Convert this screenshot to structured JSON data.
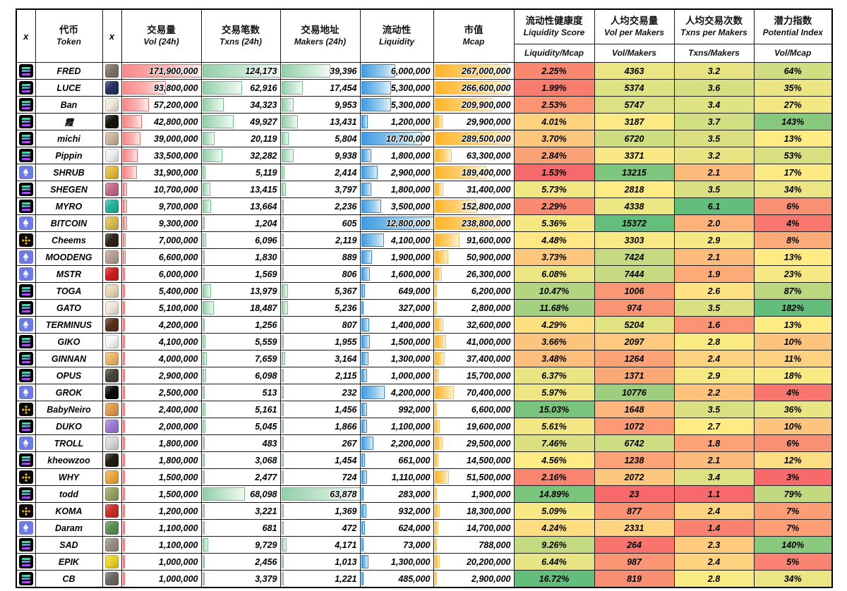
{
  "header": {
    "x1": "x",
    "x2": "x",
    "token": {
      "zh": "代币",
      "en": "Token"
    },
    "vol": {
      "zh": "交易量",
      "en": "Vol (24h)"
    },
    "txns": {
      "zh": "交易笔数",
      "en": "Txns (24h)"
    },
    "makers": {
      "zh": "交易地址",
      "en": "Makers (24h)"
    },
    "liquidity": {
      "zh": "流动性",
      "en": "Liquidity"
    },
    "mcap": {
      "zh": "市值",
      "en": "Mcap"
    },
    "liq_score": {
      "zh": "流动性健康度",
      "en": "Liquidity Score",
      "sub": "Liquidity/Mcap"
    },
    "vol_per_makers": {
      "zh": "人均交易量",
      "en": "Vol per Makers",
      "sub": "Vol/Makers"
    },
    "txns_per_makers": {
      "zh": "人均交易次数",
      "en": "Txns per Makers",
      "sub": "Txns/Makers"
    },
    "potential": {
      "zh": "潜力指数",
      "en": "Potential Index",
      "sub": "Vol/Mcap"
    }
  },
  "colors": {
    "heat_low": "#F8696B",
    "heat_mid": "#FFEB84",
    "heat_high": "#63BE7B",
    "bar_vol": "#F98B8B",
    "bar_txns": "#93CFA8",
    "bar_liquidity": "#419CE1",
    "bar_mcap": "#FFB429",
    "chain_solana_gradient": [
      "#00F0A0",
      "#9945FF"
    ],
    "chain_ethereum_bg": "#6E7BE2",
    "chain_bnb_gold": "#F3BA2F"
  },
  "chart_data": {
    "type": "table",
    "columns": [
      "chain",
      "token",
      "icon",
      "vol_24h",
      "txns_24h",
      "makers_24h",
      "liquidity",
      "mcap",
      "liquidity_mcap_pct",
      "vol_per_makers",
      "txns_per_makers",
      "vol_mcap_pct"
    ],
    "heat_scale": {
      "low": "#F8696B",
      "mid": "#FFEB84",
      "high": "#63BE7B",
      "midpoint": "median"
    },
    "rows": [
      {
        "chain": "solana",
        "token": "FRED",
        "icon_color": "#7d7468",
        "vol": 171900000,
        "txns": 124173,
        "makers": 39396,
        "liquidity": 6000000,
        "mcap": 267000000,
        "liq_mcap_pct": 2.25,
        "vol_per_makers": 4363,
        "txns_per_makers": 3.2,
        "vol_mcap_pct": 64
      },
      {
        "chain": "solana",
        "token": "LUCE",
        "icon_color": "#24335f",
        "vol": 93800000,
        "txns": 62916,
        "makers": 17454,
        "liquidity": 5300000,
        "mcap": 266600000,
        "liq_mcap_pct": 1.99,
        "vol_per_makers": 5374,
        "txns_per_makers": 3.6,
        "vol_mcap_pct": 35
      },
      {
        "chain": "solana",
        "token": "Ban",
        "icon_color": "#f0ead8",
        "vol": 57200000,
        "txns": 34323,
        "makers": 9953,
        "liquidity": 5300000,
        "mcap": 209900000,
        "liq_mcap_pct": 2.53,
        "vol_per_makers": 5747,
        "txns_per_makers": 3.4,
        "vol_mcap_pct": 27
      },
      {
        "chain": "solana",
        "token": "霞",
        "icon_color": "#15130a",
        "vol": 42800000,
        "txns": 49927,
        "makers": 13431,
        "liquidity": 1200000,
        "mcap": 29900000,
        "liq_mcap_pct": 4.01,
        "vol_per_makers": 3187,
        "txns_per_makers": 3.7,
        "vol_mcap_pct": 143
      },
      {
        "chain": "solana",
        "token": "michi",
        "icon_color": "#c9b49b",
        "vol": 39000000,
        "txns": 20119,
        "makers": 5804,
        "liquidity": 10700000,
        "mcap": 289500000,
        "liq_mcap_pct": 3.7,
        "vol_per_makers": 6720,
        "txns_per_makers": 3.5,
        "vol_mcap_pct": 13
      },
      {
        "chain": "solana",
        "token": "Pippin",
        "icon_color": "#eef0f2",
        "vol": 33500000,
        "txns": 32282,
        "makers": 9938,
        "liquidity": 1800000,
        "mcap": 63300000,
        "liq_mcap_pct": 2.84,
        "vol_per_makers": 3371,
        "txns_per_makers": 3.2,
        "vol_mcap_pct": 53
      },
      {
        "chain": "ethereum",
        "token": "SHRUB",
        "icon_color": "#e0b93f",
        "vol": 31900000,
        "txns": 5119,
        "makers": 2414,
        "liquidity": 2900000,
        "mcap": 189400000,
        "liq_mcap_pct": 1.53,
        "vol_per_makers": 13215,
        "txns_per_makers": 2.1,
        "vol_mcap_pct": 17
      },
      {
        "chain": "solana",
        "token": "SHEGEN",
        "icon_color": "#c06a8a",
        "vol": 10700000,
        "txns": 13415,
        "makers": 3797,
        "liquidity": 1800000,
        "mcap": 31400000,
        "liq_mcap_pct": 5.73,
        "vol_per_makers": 2818,
        "txns_per_makers": 3.5,
        "vol_mcap_pct": 34
      },
      {
        "chain": "solana",
        "token": "MYRO",
        "icon_color": "#24b39a",
        "vol": 9700000,
        "txns": 13664,
        "makers": 2236,
        "liquidity": 3500000,
        "mcap": 152800000,
        "liq_mcap_pct": 2.29,
        "vol_per_makers": 4338,
        "txns_per_makers": 6.1,
        "vol_mcap_pct": 6
      },
      {
        "chain": "ethereum",
        "token": "BITCOIN",
        "icon_color": "#d8bc52",
        "vol": 9300000,
        "txns": 1204,
        "makers": 605,
        "liquidity": 12800000,
        "mcap": 238800000,
        "liq_mcap_pct": 5.36,
        "vol_per_makers": 15372,
        "txns_per_makers": 2.0,
        "vol_mcap_pct": 4
      },
      {
        "chain": "bnb",
        "token": "Cheems",
        "icon_color": "#2e2418",
        "vol": 7000000,
        "txns": 6096,
        "makers": 2119,
        "liquidity": 4100000,
        "mcap": 91600000,
        "liq_mcap_pct": 4.48,
        "vol_per_makers": 3303,
        "txns_per_makers": 2.9,
        "vol_mcap_pct": 8
      },
      {
        "chain": "ethereum",
        "token": "MOODENG",
        "icon_color": "#b59f92",
        "vol": 6600000,
        "txns": 1830,
        "makers": 889,
        "liquidity": 1900000,
        "mcap": 50900000,
        "liq_mcap_pct": 3.73,
        "vol_per_makers": 7424,
        "txns_per_makers": 2.1,
        "vol_mcap_pct": 13
      },
      {
        "chain": "ethereum",
        "token": "MSTR",
        "icon_color": "#cf1f1f",
        "vol": 6000000,
        "txns": 1569,
        "makers": 806,
        "liquidity": 1600000,
        "mcap": 26300000,
        "liq_mcap_pct": 6.08,
        "vol_per_makers": 7444,
        "txns_per_makers": 1.9,
        "vol_mcap_pct": 23
      },
      {
        "chain": "solana",
        "token": "TOGA",
        "icon_color": "#e5d7b5",
        "vol": 5400000,
        "txns": 13979,
        "makers": 5367,
        "liquidity": 649000,
        "mcap": 6200000,
        "liq_mcap_pct": 10.47,
        "vol_per_makers": 1006,
        "txns_per_makers": 2.6,
        "vol_mcap_pct": 87
      },
      {
        "chain": "solana",
        "token": "GATO",
        "icon_color": "#efe8da",
        "vol": 5100000,
        "txns": 18487,
        "makers": 5236,
        "liquidity": 327000,
        "mcap": 2800000,
        "liq_mcap_pct": 11.68,
        "vol_per_makers": 974,
        "txns_per_makers": 3.5,
        "vol_mcap_pct": 182
      },
      {
        "chain": "ethereum",
        "token": "TERMINUS",
        "icon_color": "#59301c",
        "vol": 4200000,
        "txns": 1256,
        "makers": 807,
        "liquidity": 1400000,
        "mcap": 32600000,
        "liq_mcap_pct": 4.29,
        "vol_per_makers": 5204,
        "txns_per_makers": 1.6,
        "vol_mcap_pct": 13
      },
      {
        "chain": "solana",
        "token": "GIKO",
        "icon_color": "#f7f7f7",
        "vol": 4100000,
        "txns": 5559,
        "makers": 1955,
        "liquidity": 1500000,
        "mcap": 41000000,
        "liq_mcap_pct": 3.66,
        "vol_per_makers": 2097,
        "txns_per_makers": 2.8,
        "vol_mcap_pct": 10
      },
      {
        "chain": "solana",
        "token": "GINNAN",
        "icon_color": "#e9b66a",
        "vol": 4000000,
        "txns": 7659,
        "makers": 3164,
        "liquidity": 1300000,
        "mcap": 37400000,
        "liq_mcap_pct": 3.48,
        "vol_per_makers": 1264,
        "txns_per_makers": 2.4,
        "vol_mcap_pct": 11
      },
      {
        "chain": "solana",
        "token": "OPUS",
        "icon_color": "#4a443c",
        "vol": 2900000,
        "txns": 6098,
        "makers": 2115,
        "liquidity": 1000000,
        "mcap": 15700000,
        "liq_mcap_pct": 6.37,
        "vol_per_makers": 1371,
        "txns_per_makers": 2.9,
        "vol_mcap_pct": 18
      },
      {
        "chain": "ethereum",
        "token": "GROK",
        "icon_color": "#0a0a0a",
        "vol": 2500000,
        "txns": 513,
        "makers": 232,
        "liquidity": 4200000,
        "mcap": 70400000,
        "liq_mcap_pct": 5.97,
        "vol_per_makers": 10776,
        "txns_per_makers": 2.2,
        "vol_mcap_pct": 4
      },
      {
        "chain": "bnb",
        "token": "BabyNeiro",
        "icon_color": "#e09a4e",
        "vol": 2400000,
        "txns": 5161,
        "makers": 1456,
        "liquidity": 992000,
        "mcap": 6600000,
        "liq_mcap_pct": 15.03,
        "vol_per_makers": 1648,
        "txns_per_makers": 3.5,
        "vol_mcap_pct": 36
      },
      {
        "chain": "solana",
        "token": "DUKO",
        "icon_color": "#9d7ad0",
        "vol": 2000000,
        "txns": 5045,
        "makers": 1866,
        "liquidity": 1100000,
        "mcap": 19600000,
        "liq_mcap_pct": 5.61,
        "vol_per_makers": 1072,
        "txns_per_makers": 2.7,
        "vol_mcap_pct": 10
      },
      {
        "chain": "ethereum",
        "token": "TROLL",
        "icon_color": "#d9d9d9",
        "vol": 1800000,
        "txns": 483,
        "makers": 267,
        "liquidity": 2200000,
        "mcap": 29500000,
        "liq_mcap_pct": 7.46,
        "vol_per_makers": 6742,
        "txns_per_makers": 1.8,
        "vol_mcap_pct": 6
      },
      {
        "chain": "solana",
        "token": "kheowzoo",
        "icon_color": "#211c10",
        "vol": 1800000,
        "txns": 3068,
        "makers": 1454,
        "liquidity": 661000,
        "mcap": 14500000,
        "liq_mcap_pct": 4.56,
        "vol_per_makers": 1238,
        "txns_per_makers": 2.1,
        "vol_mcap_pct": 12
      },
      {
        "chain": "bnb",
        "token": "WHY",
        "icon_color": "#e8a93c",
        "vol": 1500000,
        "txns": 2477,
        "makers": 724,
        "liquidity": 1110000,
        "mcap": 51500000,
        "liq_mcap_pct": 2.16,
        "vol_per_makers": 2072,
        "txns_per_makers": 3.4,
        "vol_mcap_pct": 3
      },
      {
        "chain": "solana",
        "token": "todd",
        "icon_color": "#97a061",
        "vol": 1500000,
        "txns": 68098,
        "makers": 63878,
        "liquidity": 283000,
        "mcap": 1900000,
        "liq_mcap_pct": 14.89,
        "vol_per_makers": 23,
        "txns_per_makers": 1.1,
        "vol_mcap_pct": 79
      },
      {
        "chain": "bnb",
        "token": "KOMA",
        "icon_color": "#c92f28",
        "vol": 1200000,
        "txns": 3221,
        "makers": 1369,
        "liquidity": 932000,
        "mcap": 18300000,
        "liq_mcap_pct": 5.09,
        "vol_per_makers": 877,
        "txns_per_makers": 2.4,
        "vol_mcap_pct": 7
      },
      {
        "chain": "ethereum",
        "token": "Daram",
        "icon_color": "#5d8f52",
        "vol": 1100000,
        "txns": 681,
        "makers": 472,
        "liquidity": 624000,
        "mcap": 14700000,
        "liq_mcap_pct": 4.24,
        "vol_per_makers": 2331,
        "txns_per_makers": 1.4,
        "vol_mcap_pct": 7
      },
      {
        "chain": "solana",
        "token": "SAD",
        "icon_color": "#978f83",
        "vol": 1100000,
        "txns": 9729,
        "makers": 4171,
        "liquidity": 73000,
        "mcap": 788000,
        "liq_mcap_pct": 9.26,
        "vol_per_makers": 264,
        "txns_per_makers": 2.3,
        "vol_mcap_pct": 140
      },
      {
        "chain": "solana",
        "token": "EPIK",
        "icon_color": "#ead32b",
        "vol": 1000000,
        "txns": 2456,
        "makers": 1013,
        "liquidity": 1300000,
        "mcap": 20200000,
        "liq_mcap_pct": 6.44,
        "vol_per_makers": 987,
        "txns_per_makers": 2.4,
        "vol_mcap_pct": 5
      },
      {
        "chain": "solana",
        "token": "CB",
        "icon_color": "#6b6763",
        "vol": 1000000,
        "txns": 3379,
        "makers": 1221,
        "liquidity": 485000,
        "mcap": 2900000,
        "liq_mcap_pct": 16.72,
        "vol_per_makers": 819,
        "txns_per_makers": 2.8,
        "vol_mcap_pct": 34
      }
    ]
  }
}
